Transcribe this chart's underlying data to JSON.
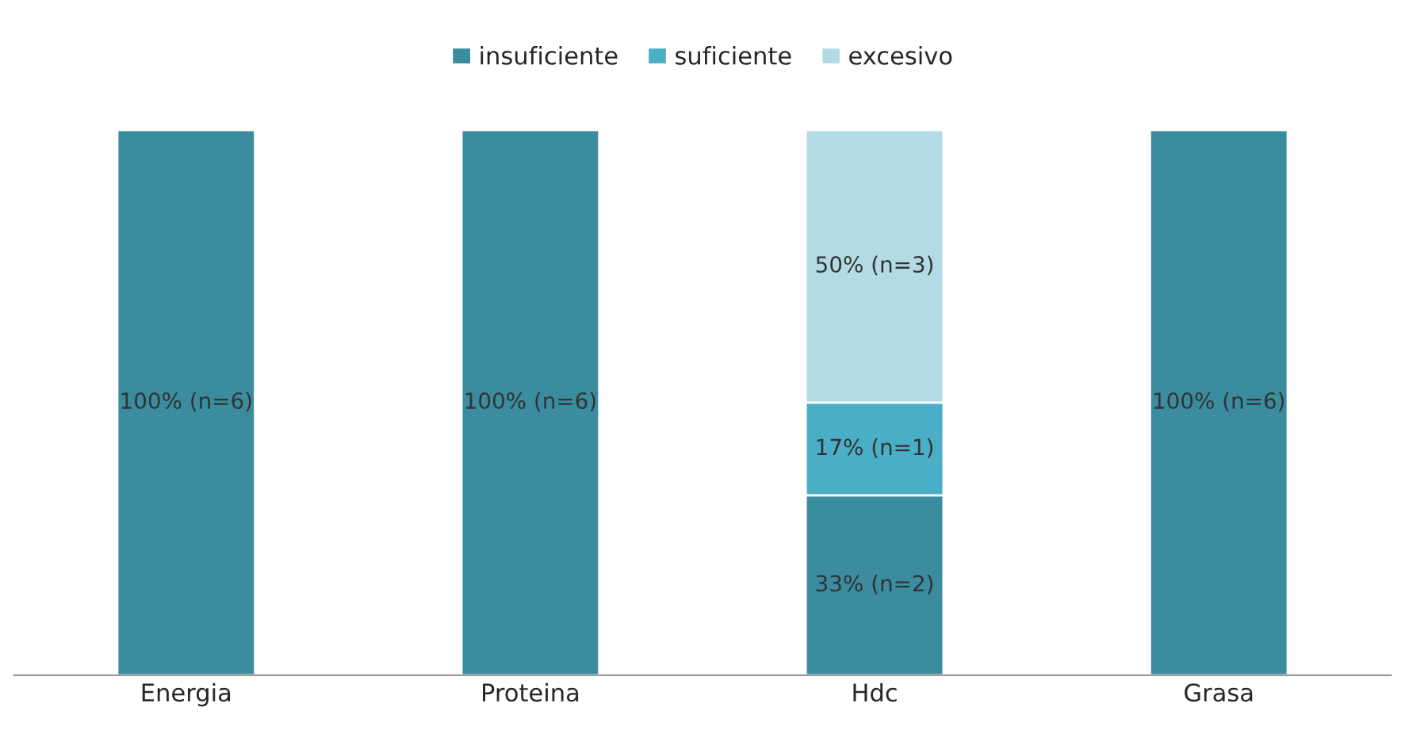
{
  "chart_data": {
    "type": "bar",
    "stacked": true,
    "legend": "top",
    "grid": false,
    "categories": [
      "Energia",
      "Proteina",
      "Hdc",
      "Grasa"
    ],
    "series": [
      {
        "name": "insuficiente",
        "color": "#3a8c9e",
        "values": [
          100,
          100,
          33,
          100
        ],
        "value_labels": [
          "100% (n=6)",
          "100% (n=6)",
          "33% (n=2)",
          "100% (n=6)"
        ]
      },
      {
        "name": "suficiente",
        "color": "#4aaec6",
        "values": [
          null,
          null,
          17,
          null
        ],
        "value_labels": [
          null,
          null,
          "17% (n=1)",
          null
        ]
      },
      {
        "name": "excesivo",
        "color": "#b3dbe5",
        "values": [
          null,
          null,
          50,
          null
        ],
        "value_labels": [
          null,
          null,
          "50% (n=3)",
          null
        ]
      }
    ]
  }
}
